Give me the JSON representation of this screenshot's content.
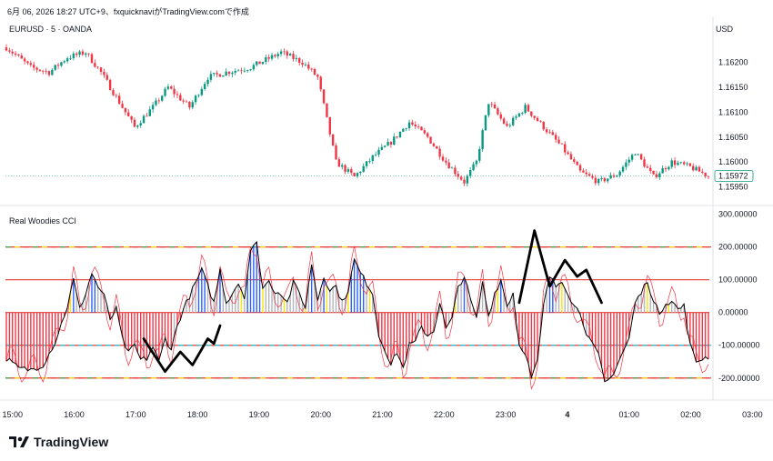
{
  "header": {
    "caption": "6月 06, 2026 18:27 UTC+9、fxquicknaviがTradingView.comで作成"
  },
  "symbol_title": "EURUSD · 5 · OANDA",
  "currency": "USD",
  "indicator_title": "Real Woodies CCI",
  "brand": "TradingView",
  "colors": {
    "up": "#089981",
    "down": "#f23645",
    "hist_red": "#f23645",
    "hist_blue": "#2962ff",
    "hist_gray": "#b2b5be",
    "hist_yellow": "#f7e600",
    "level_red": "#e53935",
    "level_green": "#43a047",
    "level_cyan": "#26c6da"
  },
  "chart_data": [
    {
      "type": "candlestick",
      "title": "EURUSD · 5 · OANDA",
      "y_ticks": [
        "1.16200",
        "1.16150",
        "1.16100",
        "1.16050",
        "1.16000",
        "1.15950"
      ],
      "ylim": [
        1.1592,
        1.16285
      ],
      "last_price": "1.15972",
      "anchors": [
        [
          0,
          1.1623
        ],
        [
          8,
          1.1619
        ],
        [
          14,
          1.1618
        ],
        [
          20,
          1.1621
        ],
        [
          26,
          1.1622
        ],
        [
          31,
          1.1618
        ],
        [
          37,
          1.1612
        ],
        [
          42,
          1.1607
        ],
        [
          48,
          1.1611
        ],
        [
          53,
          1.1615
        ],
        [
          60,
          1.1611
        ],
        [
          66,
          1.1617
        ],
        [
          72,
          1.1618
        ],
        [
          80,
          1.1619
        ],
        [
          90,
          1.1622
        ],
        [
          97,
          1.162
        ],
        [
          102,
          1.1617
        ],
        [
          108,
          1.16
        ],
        [
          114,
          1.1597
        ],
        [
          120,
          1.1601
        ],
        [
          126,
          1.1604
        ],
        [
          132,
          1.1608
        ],
        [
          138,
          1.1605
        ],
        [
          144,
          1.16
        ],
        [
          150,
          1.1596
        ],
        [
          154,
          1.16
        ],
        [
          158,
          1.1612
        ],
        [
          164,
          1.1607
        ],
        [
          170,
          1.1611
        ],
        [
          176,
          1.1607
        ],
        [
          182,
          1.1603
        ],
        [
          188,
          1.1598
        ],
        [
          194,
          1.1596
        ],
        [
          200,
          1.15975
        ],
        [
          206,
          1.1602
        ],
        [
          212,
          1.1597
        ],
        [
          218,
          1.16
        ],
        [
          224,
          1.1599
        ],
        [
          230,
          1.15972
        ]
      ]
    },
    {
      "type": "line",
      "title": "Real Woodies CCI",
      "y_ticks": [
        "300.00000",
        "200.00000",
        "100.00000",
        "0.00000",
        "-100.00000",
        "-200.00000"
      ],
      "ylim": [
        -245,
        310
      ],
      "levels": [
        200,
        100,
        0,
        -100,
        -200
      ],
      "cci_anchors": [
        [
          0,
          -140
        ],
        [
          4,
          -170
        ],
        [
          8,
          -175
        ],
        [
          12,
          -160
        ],
        [
          16,
          -90
        ],
        [
          20,
          20
        ],
        [
          22,
          100
        ],
        [
          24,
          10
        ],
        [
          26,
          60
        ],
        [
          28,
          120
        ],
        [
          30,
          80
        ],
        [
          32,
          50
        ],
        [
          34,
          -20
        ],
        [
          36,
          10
        ],
        [
          38,
          -80
        ],
        [
          40,
          -125
        ],
        [
          42,
          -100
        ],
        [
          44,
          -145
        ],
        [
          46,
          -140
        ],
        [
          48,
          -105
        ],
        [
          50,
          -150
        ],
        [
          52,
          -80
        ],
        [
          54,
          -110
        ],
        [
          56,
          -40
        ],
        [
          58,
          10
        ],
        [
          60,
          50
        ],
        [
          62,
          90
        ],
        [
          64,
          130
        ],
        [
          66,
          80
        ],
        [
          68,
          30
        ],
        [
          70,
          130
        ],
        [
          72,
          30
        ],
        [
          74,
          60
        ],
        [
          76,
          90
        ],
        [
          78,
          50
        ],
        [
          80,
          190
        ],
        [
          82,
          210
        ],
        [
          84,
          75
        ],
        [
          86,
          95
        ],
        [
          88,
          65
        ],
        [
          90,
          60
        ],
        [
          92,
          30
        ],
        [
          94,
          90
        ],
        [
          96,
          60
        ],
        [
          98,
          15
        ],
        [
          100,
          150
        ],
        [
          102,
          40
        ],
        [
          104,
          110
        ],
        [
          106,
          70
        ],
        [
          108,
          80
        ],
        [
          110,
          30
        ],
        [
          112,
          70
        ],
        [
          114,
          160
        ],
        [
          116,
          120
        ],
        [
          118,
          90
        ],
        [
          120,
          60
        ],
        [
          122,
          -70
        ],
        [
          124,
          -110
        ],
        [
          126,
          -160
        ],
        [
          128,
          -120
        ],
        [
          130,
          -170
        ],
        [
          132,
          -100
        ],
        [
          134,
          -90
        ],
        [
          136,
          -45
        ],
        [
          138,
          -70
        ],
        [
          140,
          -55
        ],
        [
          142,
          30
        ],
        [
          144,
          -50
        ],
        [
          146,
          -20
        ],
        [
          148,
          80
        ],
        [
          150,
          110
        ],
        [
          152,
          40
        ],
        [
          154,
          -20
        ],
        [
          156,
          90
        ],
        [
          158,
          -10
        ],
        [
          160,
          60
        ],
        [
          162,
          100
        ],
        [
          164,
          20
        ],
        [
          166,
          60
        ],
        [
          168,
          -100
        ],
        [
          170,
          -120
        ],
        [
          172,
          -200
        ],
        [
          174,
          -150
        ],
        [
          176,
          20
        ],
        [
          178,
          110
        ],
        [
          180,
          80
        ],
        [
          182,
          100
        ],
        [
          184,
          60
        ],
        [
          186,
          20
        ],
        [
          188,
          0
        ],
        [
          190,
          -60
        ],
        [
          192,
          -100
        ],
        [
          194,
          -130
        ],
        [
          196,
          -215
        ],
        [
          198,
          -200
        ],
        [
          200,
          -160
        ],
        [
          202,
          -120
        ],
        [
          204,
          -80
        ],
        [
          206,
          30
        ],
        [
          208,
          60
        ],
        [
          210,
          100
        ],
        [
          212,
          30
        ],
        [
          214,
          0
        ],
        [
          216,
          30
        ],
        [
          218,
          35
        ],
        [
          220,
          10
        ],
        [
          222,
          20
        ],
        [
          224,
          -100
        ],
        [
          226,
          -150
        ],
        [
          228,
          -140
        ],
        [
          230,
          -135
        ]
      ]
    }
  ],
  "x_ticks": [
    "15:00",
    "16:00",
    "17:00",
    "18:00",
    "19:00",
    "20:00",
    "21:00",
    "22:00",
    "23:00",
    "4",
    "01:00",
    "02:00",
    "03:00"
  ]
}
